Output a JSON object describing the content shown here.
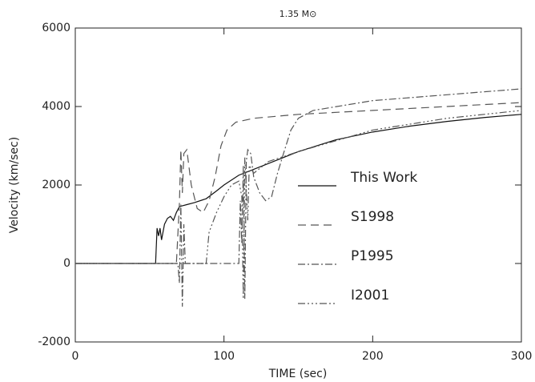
{
  "chart_data": {
    "type": "line",
    "title": "1.35 M⊙",
    "x_label": "TIME (sec)",
    "y_label": "Velocity (km/sec)",
    "xlim": [
      0,
      300
    ],
    "xticks": [
      0,
      100,
      200,
      300
    ],
    "ylim": [
      -2000,
      6000
    ],
    "yticks": [
      -2000,
      0,
      2000,
      4000,
      6000
    ],
    "legend": "center-right",
    "series": [
      {
        "name": "This Work",
        "color": "#111111",
        "dash": "none",
        "x": [
          0,
          54,
          55,
          56,
          57,
          58,
          60,
          62,
          64,
          66,
          68,
          70,
          75,
          80,
          88,
          95,
          100,
          110,
          120,
          130,
          150,
          175,
          200,
          225,
          250,
          275,
          300
        ],
        "values": [
          0,
          0,
          900,
          700,
          900,
          600,
          1000,
          1150,
          1200,
          1100,
          1300,
          1450,
          1500,
          1550,
          1650,
          1850,
          2000,
          2250,
          2400,
          2550,
          2850,
          3150,
          3350,
          3500,
          3620,
          3720,
          3800
        ]
      },
      {
        "name": "S1998",
        "color": "#555555",
        "dash": "10 6",
        "x": [
          0,
          68,
          70,
          71,
          72,
          73,
          75,
          78,
          82,
          86,
          90,
          94,
          98,
          102,
          108,
          120,
          150,
          200,
          250,
          300
        ],
        "values": [
          0,
          0,
          1500,
          2900,
          1800,
          2800,
          2900,
          2000,
          1400,
          1300,
          1600,
          2200,
          3000,
          3400,
          3600,
          3700,
          3800,
          3900,
          4000,
          4100
        ]
      },
      {
        "name": "P1995",
        "color": "#555555",
        "dash": "9 3 2 3",
        "x": [
          0,
          69,
          70,
          71,
          72,
          73,
          74,
          110,
          111,
          112,
          113,
          114,
          115,
          116,
          118,
          120,
          124,
          128,
          132,
          136,
          140,
          145,
          150,
          160,
          200,
          250,
          300
        ],
        "values": [
          0,
          0,
          -500,
          1500,
          -1100,
          1000,
          0,
          0,
          1600,
          500,
          2500,
          -900,
          2600,
          2900,
          2800,
          2200,
          1800,
          1600,
          1700,
          2300,
          2800,
          3400,
          3700,
          3900,
          4150,
          4300,
          4450
        ]
      },
      {
        "name": "I2001",
        "color": "#555555",
        "dash": "9 3 2 3 2 3 2 3",
        "x": [
          0,
          88,
          90,
          92,
          95,
          100,
          105,
          110,
          112,
          113,
          114,
          116,
          117,
          120,
          130,
          150,
          200,
          250,
          300
        ],
        "values": [
          0,
          0,
          800,
          1000,
          1300,
          1700,
          2000,
          2100,
          1700,
          -900,
          2700,
          1100,
          2500,
          2300,
          2600,
          2850,
          3400,
          3700,
          3900
        ]
      }
    ]
  }
}
